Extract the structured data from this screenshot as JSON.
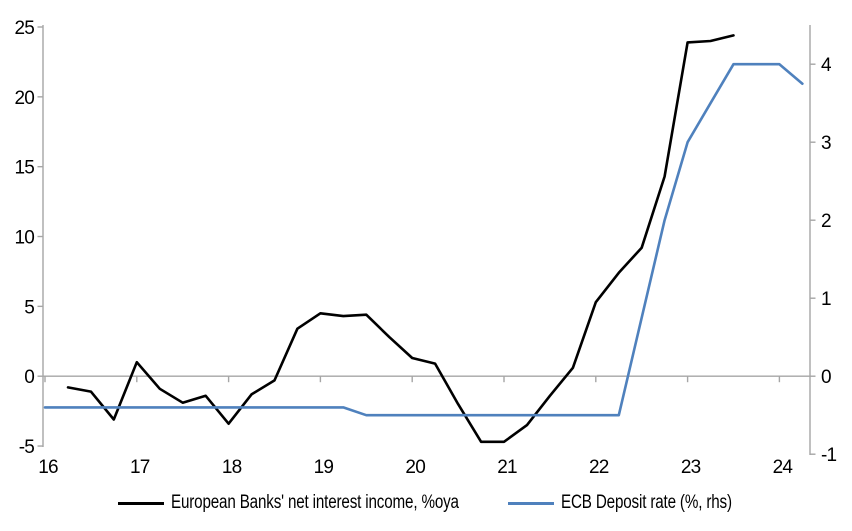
{
  "chart_data": {
    "type": "line",
    "title": "",
    "grid": "zero-line-only",
    "legend_position": "bottom",
    "x_axis": {
      "min": 16,
      "max": 24.3,
      "ticks": [
        16,
        17,
        18,
        19,
        20,
        21,
        22,
        23,
        24
      ],
      "tick_labels": [
        "16",
        "17",
        "18",
        "19",
        "20",
        "21",
        "22",
        "23",
        "24"
      ]
    },
    "left_axis": {
      "min": -5,
      "max": 25,
      "ticks": [
        -5,
        0,
        5,
        10,
        15,
        20,
        25
      ],
      "tick_labels": [
        "-5",
        "0",
        "5",
        "10",
        "15",
        "20",
        "25"
      ]
    },
    "right_axis": {
      "min": -1,
      "max": 4.5,
      "ticks": [
        -1,
        0,
        1,
        2,
        3,
        4
      ],
      "tick_labels": [
        "-1",
        "0",
        "1",
        "2",
        "3",
        "4"
      ]
    },
    "series": [
      {
        "name": "European Banks' net interest income, %oya",
        "axis": "left",
        "color": "#000000",
        "points": [
          [
            16.25,
            -0.8
          ],
          [
            16.5,
            -1.1
          ],
          [
            16.75,
            -3.1
          ],
          [
            17.0,
            1.0
          ],
          [
            17.25,
            -0.9
          ],
          [
            17.5,
            -1.9
          ],
          [
            17.75,
            -1.4
          ],
          [
            18.0,
            -3.4
          ],
          [
            18.25,
            -1.3
          ],
          [
            18.5,
            -0.3
          ],
          [
            18.75,
            3.4
          ],
          [
            19.0,
            4.5
          ],
          [
            19.25,
            4.3
          ],
          [
            19.5,
            4.4
          ],
          [
            19.75,
            2.8
          ],
          [
            20.0,
            1.3
          ],
          [
            20.25,
            0.9
          ],
          [
            20.5,
            -2.0
          ],
          [
            20.75,
            -4.7
          ],
          [
            21.0,
            -4.7
          ],
          [
            21.25,
            -3.5
          ],
          [
            21.5,
            -1.4
          ],
          [
            21.75,
            0.6
          ],
          [
            22.0,
            5.3
          ],
          [
            22.25,
            7.4
          ],
          [
            22.5,
            9.2
          ],
          [
            22.75,
            14.3
          ],
          [
            23.0,
            23.9
          ],
          [
            23.25,
            24.0
          ],
          [
            23.5,
            24.4
          ]
        ]
      },
      {
        "name": "ECB Deposit rate (%, rhs)",
        "axis": "right",
        "color": "#4f81bd",
        "points": [
          [
            16.0,
            -0.4
          ],
          [
            16.25,
            -0.4
          ],
          [
            16.5,
            -0.4
          ],
          [
            16.75,
            -0.4
          ],
          [
            17.0,
            -0.4
          ],
          [
            17.25,
            -0.4
          ],
          [
            17.5,
            -0.4
          ],
          [
            17.75,
            -0.4
          ],
          [
            18.0,
            -0.4
          ],
          [
            18.25,
            -0.4
          ],
          [
            18.5,
            -0.4
          ],
          [
            18.75,
            -0.4
          ],
          [
            19.0,
            -0.4
          ],
          [
            19.25,
            -0.4
          ],
          [
            19.5,
            -0.5
          ],
          [
            19.75,
            -0.5
          ],
          [
            20.0,
            -0.5
          ],
          [
            20.25,
            -0.5
          ],
          [
            20.5,
            -0.5
          ],
          [
            20.75,
            -0.5
          ],
          [
            21.0,
            -0.5
          ],
          [
            21.25,
            -0.5
          ],
          [
            21.5,
            -0.5
          ],
          [
            21.75,
            -0.5
          ],
          [
            22.0,
            -0.5
          ],
          [
            22.25,
            -0.5
          ],
          [
            22.5,
            0.75
          ],
          [
            22.75,
            2.0
          ],
          [
            23.0,
            3.0
          ],
          [
            23.25,
            3.5
          ],
          [
            23.5,
            4.0
          ],
          [
            23.75,
            4.0
          ],
          [
            24.0,
            4.0
          ],
          [
            24.25,
            3.75
          ]
        ]
      }
    ],
    "colors": {
      "axis": "#a6a6a6",
      "zero_line": "#a6a6a6",
      "background": "#ffffff",
      "text": "#000000",
      "series1": "#000000",
      "series2": "#4f81bd"
    }
  }
}
